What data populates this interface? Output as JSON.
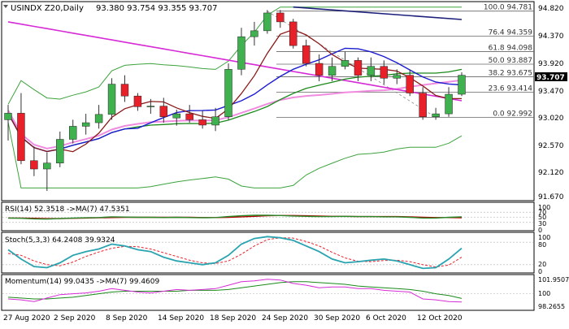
{
  "header": {
    "symbol": "USINDX Z20,Daily",
    "ohlc": "93.380 93.754 93.355 93.707"
  },
  "main_panel": {
    "price_ticks": [
      "94.820",
      "94.370",
      "93.920",
      "93.470",
      "93.020",
      "92.570",
      "92.120",
      "91.670"
    ],
    "last_price": "93.707",
    "fib_levels": [
      {
        "label": "100.0 94.781",
        "value": 94.781
      },
      {
        "label": "76.4 94.359",
        "value": 94.359
      },
      {
        "label": "61.8 94.098",
        "value": 94.098
      },
      {
        "label": "50.0 93.887",
        "value": 93.887
      },
      {
        "label": "38.2 93.675",
        "value": 93.675
      },
      {
        "label": "23.6 93.414",
        "value": 93.414
      },
      {
        "label": "0.0 92.992",
        "value": 92.992
      }
    ]
  },
  "rsi_panel": {
    "label": "RSI(14) 52.3518  ->MA(7) 47.5351",
    "ticks": [
      "100",
      "70",
      "50",
      "30",
      "0"
    ]
  },
  "stoch_panel": {
    "label": "Stoch(5,3,3) 64.2408 39.9324",
    "ticks": [
      "100",
      "80",
      "20",
      "0"
    ]
  },
  "momentum_panel": {
    "label": "Momentum(14) 99.0435  ->MA(7) 99.4609",
    "ticks": [
      "101.9507",
      "100",
      "98.2655"
    ]
  },
  "x_axis": {
    "labels": [
      "27 Aug 2020",
      "2 Sep 2020",
      "8 Sep 2020",
      "14 Sep 2020",
      "18 Sep 2020",
      "24 Sep 2020",
      "30 Sep 2020",
      "6 Oct 2020",
      "12 Oct 2020"
    ]
  },
  "colors": {
    "bull": "#3fb24f",
    "bear": "#e8202a",
    "fast_ma": "#1b1bd0",
    "ma_dark_red": "#8b1a1a",
    "ma_green": "#1a8a1a",
    "ma_magenta": "#d62bd6",
    "ma_pink": "#f08be0",
    "ma_navy": "#1b1f7a",
    "band": "#3da33d",
    "rsi_green": "#2a8a2a",
    "rsi_red": "#b00000",
    "stoch_teal": "#2aa3b0",
    "grid": "#c8c8c8"
  },
  "chart_data": [
    {
      "type": "candlestick",
      "title": "USINDX Z20,Daily",
      "ylim": [
        91.6,
        94.9
      ],
      "x": [
        "27 Aug",
        "28 Aug",
        "31 Aug",
        "1 Sep",
        "2 Sep",
        "3 Sep",
        "4 Sep",
        "7 Sep",
        "8 Sep",
        "9 Sep",
        "10 Sep",
        "11 Sep",
        "14 Sep",
        "15 Sep",
        "16 Sep",
        "17 Sep",
        "18 Sep",
        "21 Sep",
        "22 Sep",
        "23 Sep",
        "24 Sep",
        "25 Sep",
        "28 Sep",
        "29 Sep",
        "30 Sep",
        "1 Oct",
        "2 Oct",
        "5 Oct",
        "6 Oct",
        "7 Oct",
        "8 Oct",
        "9 Oct",
        "12 Oct",
        "13 Oct",
        "14 Oct",
        "15 Oct"
      ],
      "open": [
        92.95,
        93.06,
        92.26,
        92.12,
        92.22,
        92.62,
        92.84,
        92.9,
        93.04,
        93.55,
        93.35,
        93.17,
        93.18,
        92.98,
        93.05,
        92.95,
        92.86,
        93.0,
        93.8,
        94.35,
        94.45,
        94.75,
        94.6,
        94.2,
        93.9,
        93.7,
        93.85,
        93.95,
        93.7,
        93.85,
        93.65,
        93.7,
        93.4,
        93.0,
        93.05,
        93.38
      ],
      "close": [
        93.06,
        92.26,
        92.12,
        92.22,
        92.62,
        92.84,
        92.9,
        93.04,
        93.55,
        93.35,
        93.17,
        93.18,
        93.0,
        93.05,
        92.95,
        92.86,
        93.0,
        93.8,
        94.35,
        94.45,
        94.75,
        94.6,
        94.2,
        93.9,
        93.7,
        93.85,
        93.95,
        93.7,
        93.85,
        93.65,
        93.7,
        93.4,
        93.0,
        93.05,
        93.38,
        93.7
      ],
      "high": [
        93.2,
        93.4,
        92.5,
        92.4,
        92.75,
        92.95,
        93.05,
        93.2,
        93.65,
        93.7,
        93.4,
        93.3,
        93.32,
        93.12,
        93.2,
        93.1,
        93.15,
        93.9,
        94.5,
        94.6,
        94.8,
        94.8,
        94.65,
        94.3,
        94.05,
        94.0,
        94.1,
        94.0,
        94.0,
        93.95,
        93.8,
        93.8,
        93.5,
        93.15,
        93.5,
        93.75
      ],
      "low": [
        92.6,
        92.2,
        92.0,
        91.75,
        92.15,
        92.55,
        92.7,
        92.8,
        92.95,
        93.25,
        93.1,
        93.05,
        92.9,
        92.85,
        92.9,
        92.8,
        92.76,
        92.95,
        93.7,
        94.2,
        94.4,
        94.5,
        94.15,
        93.85,
        93.6,
        93.6,
        93.8,
        93.6,
        93.6,
        93.55,
        93.55,
        93.35,
        92.95,
        92.95,
        93.0,
        93.35
      ]
    },
    {
      "type": "line",
      "title": "RSI(14)",
      "ylim": [
        0,
        100
      ],
      "series": [
        {
          "name": "RSI(14)",
          "last": 52.3518
        },
        {
          "name": "MA(7)",
          "last": 47.5351
        }
      ],
      "values_rsi": [
        47,
        46,
        44,
        43,
        45,
        47,
        48,
        49,
        52,
        51,
        50,
        50,
        49,
        50,
        49,
        48,
        49,
        53,
        56,
        58,
        58,
        57,
        55,
        54,
        53,
        53,
        54,
        53,
        53,
        52,
        52,
        50,
        47,
        47,
        50,
        52
      ],
      "values_ma": [
        47,
        47,
        46,
        45,
        45,
        46,
        47,
        48,
        49,
        50,
        50,
        50,
        50,
        50,
        50,
        49,
        49,
        50,
        52,
        54,
        56,
        57,
        57,
        56,
        55,
        54,
        54,
        53,
        53,
        53,
        53,
        52,
        50,
        49,
        49,
        48
      ]
    },
    {
      "type": "line",
      "title": "Stoch(5,3,3)",
      "ylim": [
        0,
        100
      ],
      "series": [
        {
          "name": "%K",
          "last": 64.2408
        },
        {
          "name": "%D",
          "last": 39.9324
        }
      ],
      "values_k": [
        60,
        35,
        15,
        12,
        25,
        45,
        55,
        62,
        75,
        70,
        60,
        55,
        40,
        30,
        25,
        20,
        25,
        45,
        75,
        90,
        95,
        92,
        85,
        70,
        55,
        35,
        25,
        28,
        32,
        35,
        30,
        20,
        10,
        12,
        35,
        64
      ],
      "values_d": [
        50,
        45,
        30,
        20,
        17,
        27,
        42,
        54,
        64,
        69,
        68,
        62,
        52,
        42,
        32,
        25,
        23,
        30,
        48,
        70,
        87,
        92,
        91,
        82,
        70,
        53,
        38,
        29,
        28,
        31,
        32,
        28,
        20,
        14,
        19,
        40
      ]
    },
    {
      "type": "line",
      "title": "Momentum(14)",
      "ylim": [
        98.2655,
        101.9507
      ],
      "series": [
        {
          "name": "Momentum(14)",
          "last": 99.0435
        },
        {
          "name": "MA(7)",
          "last": 99.4609
        }
      ],
      "values_mom": [
        99.4,
        99.3,
        99.1,
        99.5,
        99.9,
        100.0,
        100.1,
        100.3,
        100.6,
        100.4,
        100.2,
        100.1,
        100.3,
        100.5,
        100.4,
        100.5,
        100.6,
        101.0,
        101.4,
        101.5,
        101.7,
        101.6,
        101.2,
        101.0,
        100.7,
        100.8,
        100.8,
        100.6,
        100.6,
        100.4,
        100.3,
        100.2,
        99.4,
        99.3,
        99.1,
        99.04
      ],
      "values_ma": [
        99.6,
        99.5,
        99.4,
        99.4,
        99.5,
        99.6,
        99.8,
        100.0,
        100.2,
        100.3,
        100.3,
        100.3,
        100.3,
        100.3,
        100.4,
        100.4,
        100.4,
        100.5,
        100.7,
        100.9,
        101.1,
        101.3,
        101.4,
        101.4,
        101.3,
        101.2,
        101.1,
        100.9,
        100.8,
        100.7,
        100.6,
        100.5,
        100.3,
        100.0,
        99.8,
        99.46
      ]
    }
  ]
}
